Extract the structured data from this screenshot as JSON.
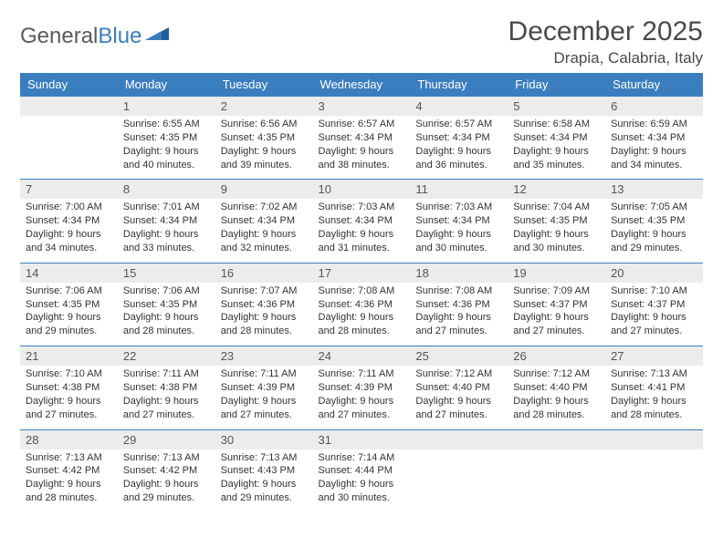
{
  "logo": {
    "text1": "General",
    "text2": "Blue"
  },
  "title": "December 2025",
  "location": "Drapia, Calabria, Italy",
  "colors": {
    "header_bg": "#3b7ec0",
    "header_text": "#ffffff",
    "daynum_bg": "#ececec",
    "daynum_text": "#555555",
    "border": "#3b7ec0",
    "body_text": "#333333",
    "title_text": "#4a4a4a",
    "logo_gray": "#5a5a5a",
    "logo_blue": "#3b7ec0"
  },
  "day_headers": [
    "Sunday",
    "Monday",
    "Tuesday",
    "Wednesday",
    "Thursday",
    "Friday",
    "Saturday"
  ],
  "weeks": [
    [
      {
        "empty": true
      },
      {
        "n": "1",
        "sr": "6:55 AM",
        "ss": "4:35 PM",
        "dl": "9 hours and 40 minutes."
      },
      {
        "n": "2",
        "sr": "6:56 AM",
        "ss": "4:35 PM",
        "dl": "9 hours and 39 minutes."
      },
      {
        "n": "3",
        "sr": "6:57 AM",
        "ss": "4:34 PM",
        "dl": "9 hours and 38 minutes."
      },
      {
        "n": "4",
        "sr": "6:57 AM",
        "ss": "4:34 PM",
        "dl": "9 hours and 36 minutes."
      },
      {
        "n": "5",
        "sr": "6:58 AM",
        "ss": "4:34 PM",
        "dl": "9 hours and 35 minutes."
      },
      {
        "n": "6",
        "sr": "6:59 AM",
        "ss": "4:34 PM",
        "dl": "9 hours and 34 minutes."
      }
    ],
    [
      {
        "n": "7",
        "sr": "7:00 AM",
        "ss": "4:34 PM",
        "dl": "9 hours and 34 minutes."
      },
      {
        "n": "8",
        "sr": "7:01 AM",
        "ss": "4:34 PM",
        "dl": "9 hours and 33 minutes."
      },
      {
        "n": "9",
        "sr": "7:02 AM",
        "ss": "4:34 PM",
        "dl": "9 hours and 32 minutes."
      },
      {
        "n": "10",
        "sr": "7:03 AM",
        "ss": "4:34 PM",
        "dl": "9 hours and 31 minutes."
      },
      {
        "n": "11",
        "sr": "7:03 AM",
        "ss": "4:34 PM",
        "dl": "9 hours and 30 minutes."
      },
      {
        "n": "12",
        "sr": "7:04 AM",
        "ss": "4:35 PM",
        "dl": "9 hours and 30 minutes."
      },
      {
        "n": "13",
        "sr": "7:05 AM",
        "ss": "4:35 PM",
        "dl": "9 hours and 29 minutes."
      }
    ],
    [
      {
        "n": "14",
        "sr": "7:06 AM",
        "ss": "4:35 PM",
        "dl": "9 hours and 29 minutes."
      },
      {
        "n": "15",
        "sr": "7:06 AM",
        "ss": "4:35 PM",
        "dl": "9 hours and 28 minutes."
      },
      {
        "n": "16",
        "sr": "7:07 AM",
        "ss": "4:36 PM",
        "dl": "9 hours and 28 minutes."
      },
      {
        "n": "17",
        "sr": "7:08 AM",
        "ss": "4:36 PM",
        "dl": "9 hours and 28 minutes."
      },
      {
        "n": "18",
        "sr": "7:08 AM",
        "ss": "4:36 PM",
        "dl": "9 hours and 27 minutes."
      },
      {
        "n": "19",
        "sr": "7:09 AM",
        "ss": "4:37 PM",
        "dl": "9 hours and 27 minutes."
      },
      {
        "n": "20",
        "sr": "7:10 AM",
        "ss": "4:37 PM",
        "dl": "9 hours and 27 minutes."
      }
    ],
    [
      {
        "n": "21",
        "sr": "7:10 AM",
        "ss": "4:38 PM",
        "dl": "9 hours and 27 minutes."
      },
      {
        "n": "22",
        "sr": "7:11 AM",
        "ss": "4:38 PM",
        "dl": "9 hours and 27 minutes."
      },
      {
        "n": "23",
        "sr": "7:11 AM",
        "ss": "4:39 PM",
        "dl": "9 hours and 27 minutes."
      },
      {
        "n": "24",
        "sr": "7:11 AM",
        "ss": "4:39 PM",
        "dl": "9 hours and 27 minutes."
      },
      {
        "n": "25",
        "sr": "7:12 AM",
        "ss": "4:40 PM",
        "dl": "9 hours and 27 minutes."
      },
      {
        "n": "26",
        "sr": "7:12 AM",
        "ss": "4:40 PM",
        "dl": "9 hours and 28 minutes."
      },
      {
        "n": "27",
        "sr": "7:13 AM",
        "ss": "4:41 PM",
        "dl": "9 hours and 28 minutes."
      }
    ],
    [
      {
        "n": "28",
        "sr": "7:13 AM",
        "ss": "4:42 PM",
        "dl": "9 hours and 28 minutes."
      },
      {
        "n": "29",
        "sr": "7:13 AM",
        "ss": "4:42 PM",
        "dl": "9 hours and 29 minutes."
      },
      {
        "n": "30",
        "sr": "7:13 AM",
        "ss": "4:43 PM",
        "dl": "9 hours and 29 minutes."
      },
      {
        "n": "31",
        "sr": "7:14 AM",
        "ss": "4:44 PM",
        "dl": "9 hours and 30 minutes."
      },
      {
        "empty": true
      },
      {
        "empty": true
      },
      {
        "empty": true
      }
    ]
  ],
  "labels": {
    "sunrise": "Sunrise:",
    "sunset": "Sunset:",
    "daylight": "Daylight:"
  }
}
